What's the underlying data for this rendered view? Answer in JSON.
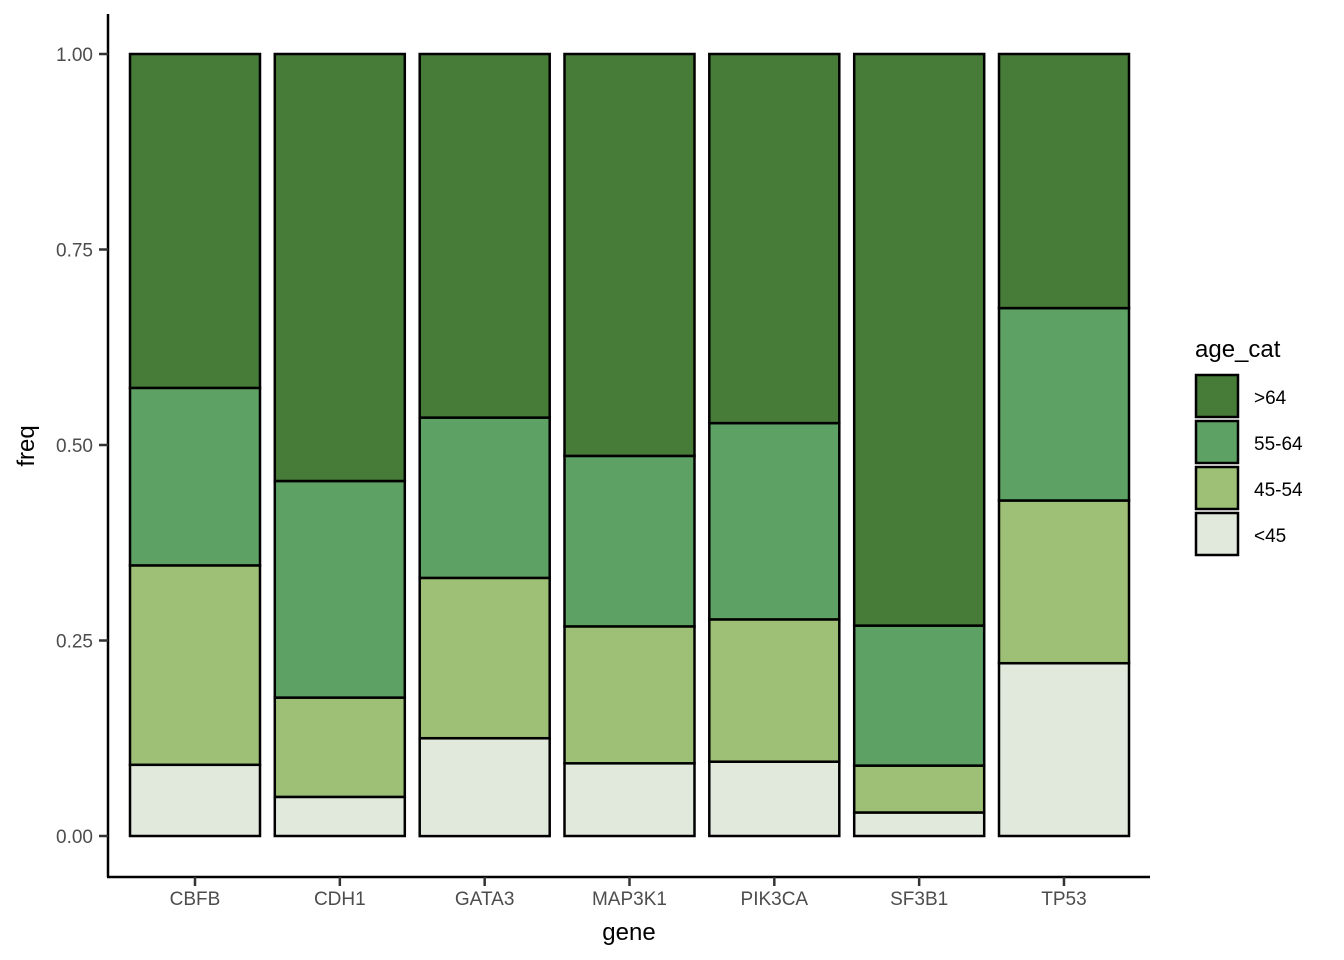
{
  "chart_data": {
    "type": "bar",
    "stacked": true,
    "xlabel": "gene",
    "ylabel": "freq",
    "ylim": [
      0,
      1
    ],
    "yticks": [
      "0.00",
      "0.25",
      "0.50",
      "0.75",
      "1.00"
    ],
    "ytick_values": [
      0,
      0.25,
      0.5,
      0.75,
      1.0
    ],
    "categories": [
      "CBFB",
      "CDH1",
      "GATA3",
      "MAP3K1",
      "PIK3CA",
      "SF3B1",
      "TP53"
    ],
    "legend": {
      "title": "age_cat",
      "placement": "right",
      "entries": [
        ">64",
        "55-64",
        "45-54",
        "<45"
      ]
    },
    "series": [
      {
        "name": "<45",
        "color": "#e1e9dd",
        "values": [
          0.091,
          0.05,
          0.125,
          0.093,
          0.095,
          0.03,
          0.221
        ]
      },
      {
        "name": "45-54",
        "color": "#9dc076",
        "values": [
          0.255,
          0.127,
          0.205,
          0.175,
          0.182,
          0.06,
          0.208
        ]
      },
      {
        "name": "55-64",
        "color": "#5ea165",
        "values": [
          0.227,
          0.277,
          0.205,
          0.218,
          0.251,
          0.179,
          0.246
        ]
      },
      {
        "name": ">64",
        "color": "#467b38",
        "values": [
          0.427,
          0.546,
          0.465,
          0.514,
          0.472,
          0.731,
          0.325
        ]
      }
    ]
  }
}
